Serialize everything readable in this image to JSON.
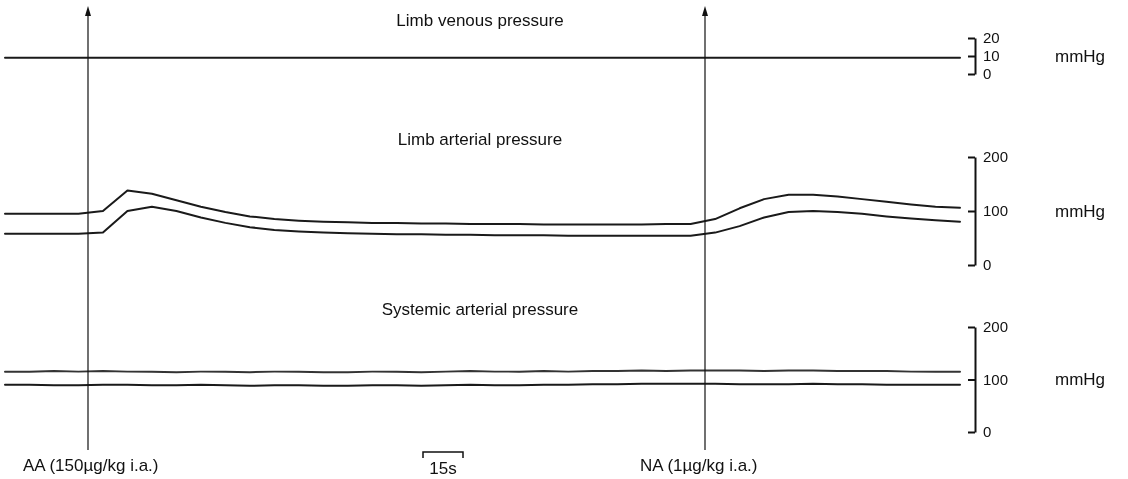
{
  "chart_data": [
    {
      "type": "line",
      "title": "Limb venous pressure",
      "ylabel": "mmHg",
      "tick_labels": "y",
      "categories": [
        null,
        null,
        null,
        null,
        null,
        null,
        null,
        null,
        null,
        null,
        null,
        null,
        null,
        null,
        null,
        null,
        null,
        null,
        null,
        null,
        null,
        null,
        null,
        null,
        null,
        null,
        null,
        null,
        null,
        null,
        null,
        null,
        null,
        null,
        null,
        null,
        null,
        null,
        null,
        null
      ],
      "ylim": [
        0,
        20
      ],
      "yticks": [
        0,
        10,
        20
      ],
      "series": [
        {
          "color": "#1a1a1a",
          "values": [
            9,
            9,
            9,
            9,
            9,
            9,
            9,
            9,
            9,
            9,
            9,
            9,
            9,
            9,
            9,
            9,
            9,
            9,
            9,
            9,
            9,
            9,
            9,
            9,
            9,
            9,
            9,
            9,
            9,
            9,
            9,
            9,
            9,
            9,
            9,
            9,
            9,
            9,
            9,
            9
          ]
        }
      ]
    },
    {
      "type": "line",
      "title": "Limb arterial pressure",
      "ylabel": "mmHg",
      "tick_labels": "y",
      "categories": [
        null,
        null,
        null,
        null,
        null,
        null,
        null,
        null,
        null,
        null,
        null,
        null,
        null,
        null,
        null,
        null,
        null,
        null,
        null,
        null,
        null,
        null,
        null,
        null,
        null,
        null,
        null,
        null,
        null,
        null,
        null,
        null,
        null,
        null,
        null,
        null,
        null,
        null,
        null,
        null
      ],
      "ylim": [
        0,
        200
      ],
      "yticks": [
        0,
        100,
        200
      ],
      "series": [
        {
          "color": "#1a1a1a",
          "values": [
            95,
            95,
            95,
            95,
            100,
            138,
            132,
            120,
            108,
            98,
            90,
            85,
            82,
            80,
            79,
            78,
            78,
            77,
            77,
            76,
            76,
            76,
            75,
            75,
            75,
            75,
            75,
            76,
            76,
            85,
            105,
            122,
            130,
            130,
            127,
            122,
            117,
            112,
            108,
            106
          ]
        },
        {
          "color": "#1a1a1a",
          "values": [
            58,
            58,
            58,
            58,
            60,
            100,
            108,
            100,
            88,
            78,
            70,
            65,
            62,
            60,
            59,
            58,
            57,
            57,
            56,
            56,
            55,
            55,
            55,
            54,
            54,
            54,
            54,
            54,
            54,
            60,
            72,
            88,
            98,
            100,
            98,
            95,
            90,
            86,
            83,
            80
          ]
        }
      ]
    },
    {
      "type": "line",
      "title": "Systemic arterial pressure",
      "ylabel": "mmHg",
      "tick_labels": "y",
      "categories": [
        null,
        null,
        null,
        null,
        null,
        null,
        null,
        null,
        null,
        null,
        null,
        null,
        null,
        null,
        null,
        null,
        null,
        null,
        null,
        null,
        null,
        null,
        null,
        null,
        null,
        null,
        null,
        null,
        null,
        null,
        null,
        null,
        null,
        null,
        null,
        null,
        null,
        null,
        null,
        null
      ],
      "ylim": [
        0,
        200
      ],
      "yticks": [
        0,
        100,
        200
      ],
      "annotations": [
        "AA (150µg/kg i.a.)",
        "NA (1µg/kg i.a.)",
        "15s"
      ],
      "series": [
        {
          "color": "#333333",
          "values": [
            115,
            115,
            116,
            115,
            116,
            115,
            115,
            114,
            115,
            115,
            114,
            115,
            115,
            114,
            114,
            115,
            115,
            114,
            115,
            116,
            115,
            115,
            116,
            115,
            116,
            116,
            117,
            116,
            117,
            117,
            117,
            116,
            117,
            117,
            116,
            116,
            116,
            115,
            115,
            115
          ]
        },
        {
          "color": "#1a1a1a",
          "values": [
            90,
            90,
            89,
            89,
            90,
            90,
            89,
            89,
            90,
            89,
            88,
            89,
            89,
            88,
            88,
            89,
            89,
            88,
            89,
            90,
            89,
            89,
            90,
            90,
            91,
            91,
            92,
            92,
            92,
            92,
            91,
            91,
            91,
            92,
            91,
            91,
            90,
            90,
            90,
            90
          ]
        }
      ]
    }
  ]
}
